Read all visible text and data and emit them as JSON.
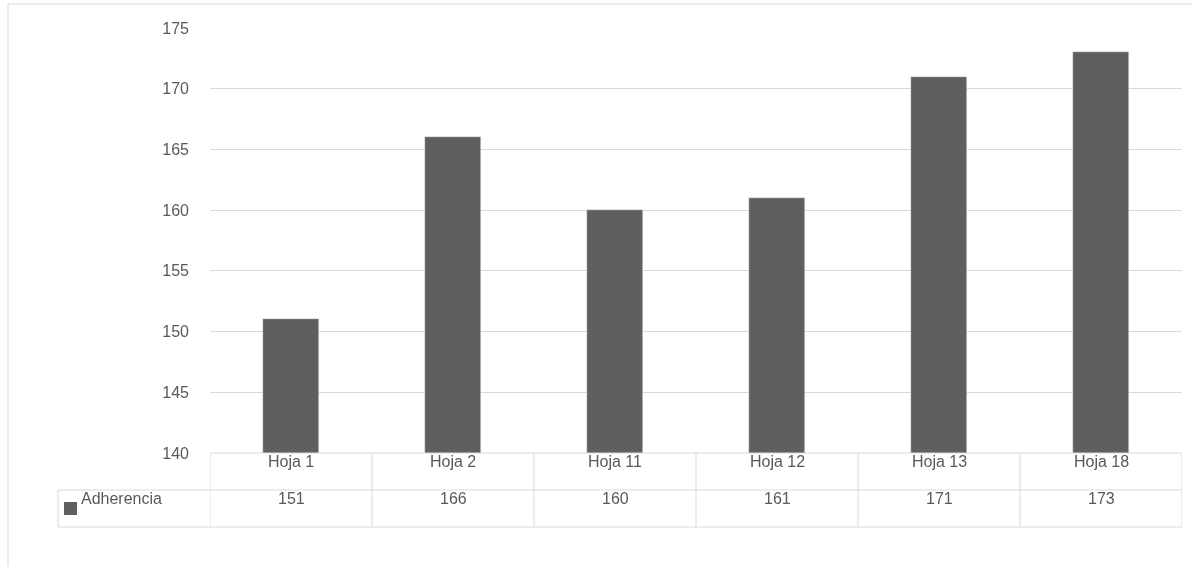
{
  "chart_data": {
    "type": "bar",
    "categories": [
      "Hoja 1",
      "Hoja 2",
      "Hoja 11",
      "Hoja 12",
      "Hoja 13",
      "Hoja 18"
    ],
    "series": [
      {
        "name": "Adherencia",
        "color": "#5f5f5f",
        "values": [
          151,
          166,
          160,
          161,
          171,
          173
        ]
      }
    ],
    "ylim": [
      140,
      175
    ],
    "yticks": [
      140,
      145,
      150,
      155,
      160,
      165,
      170,
      175
    ],
    "grid": "y",
    "legend": "bottom",
    "data_labels": true
  }
}
